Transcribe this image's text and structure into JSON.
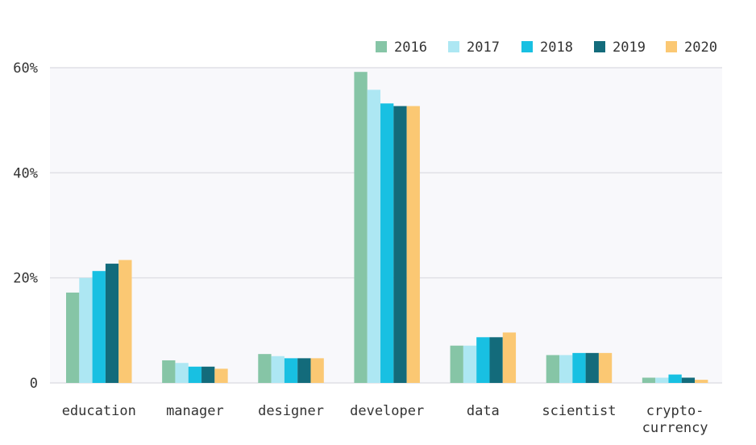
{
  "chart_data": {
    "type": "bar",
    "title": "",
    "xlabel": "",
    "ylabel": "",
    "ylim": [
      0,
      60
    ],
    "y_tick_values": [
      0,
      20,
      40,
      60
    ],
    "y_tick_labels": [
      "0",
      "20%",
      "40%",
      "60%"
    ],
    "categories": [
      [
        "education"
      ],
      [
        "manager"
      ],
      [
        "designer"
      ],
      [
        "developer"
      ],
      [
        "data"
      ],
      [
        "scientist"
      ],
      [
        "crypto-",
        "currency"
      ]
    ],
    "series": [
      {
        "name": "2016",
        "color": "#86c5a6",
        "values": [
          17.2,
          4.3,
          5.5,
          59.2,
          7.1,
          5.3,
          1.0
        ]
      },
      {
        "name": "2017",
        "color": "#ade7f3",
        "values": [
          20.0,
          3.8,
          5.1,
          55.8,
          7.1,
          5.3,
          1.0
        ]
      },
      {
        "name": "2018",
        "color": "#18c0e2",
        "values": [
          21.3,
          3.1,
          4.7,
          53.2,
          8.7,
          5.7,
          1.6
        ]
      },
      {
        "name": "2019",
        "color": "#136b7b",
        "values": [
          22.7,
          3.1,
          4.7,
          52.7,
          8.7,
          5.7,
          1.0
        ]
      },
      {
        "name": "2020",
        "color": "#fbc873",
        "values": [
          23.4,
          2.7,
          4.7,
          52.7,
          9.6,
          5.7,
          0.6
        ]
      }
    ],
    "grid": true,
    "legend": "top-right"
  }
}
